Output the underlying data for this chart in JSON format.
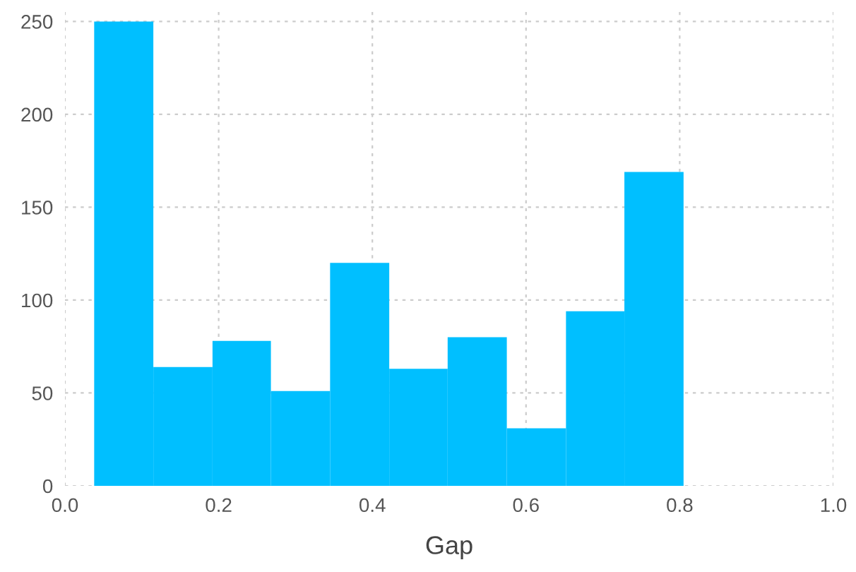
{
  "chart_data": {
    "type": "histogram",
    "xlabel": "Gap",
    "bins": [
      0.038,
      0.115,
      0.192,
      0.268,
      0.345,
      0.422,
      0.498,
      0.575,
      0.652,
      0.728,
      0.805
    ],
    "values": [
      250,
      64,
      78,
      51,
      120,
      63,
      80,
      31,
      94,
      169
    ],
    "color": "#00bfff",
    "xlim": [
      0,
      1.0
    ],
    "xticks": [
      {
        "value": 0,
        "label": "0.0"
      },
      0.2,
      0.4,
      0.6,
      0.8,
      {
        "value": 1,
        "label": "1.0"
      }
    ],
    "ylim": [
      0,
      257
    ],
    "yticks": [
      0,
      50,
      100,
      150,
      200,
      250
    ],
    "grid": true
  }
}
